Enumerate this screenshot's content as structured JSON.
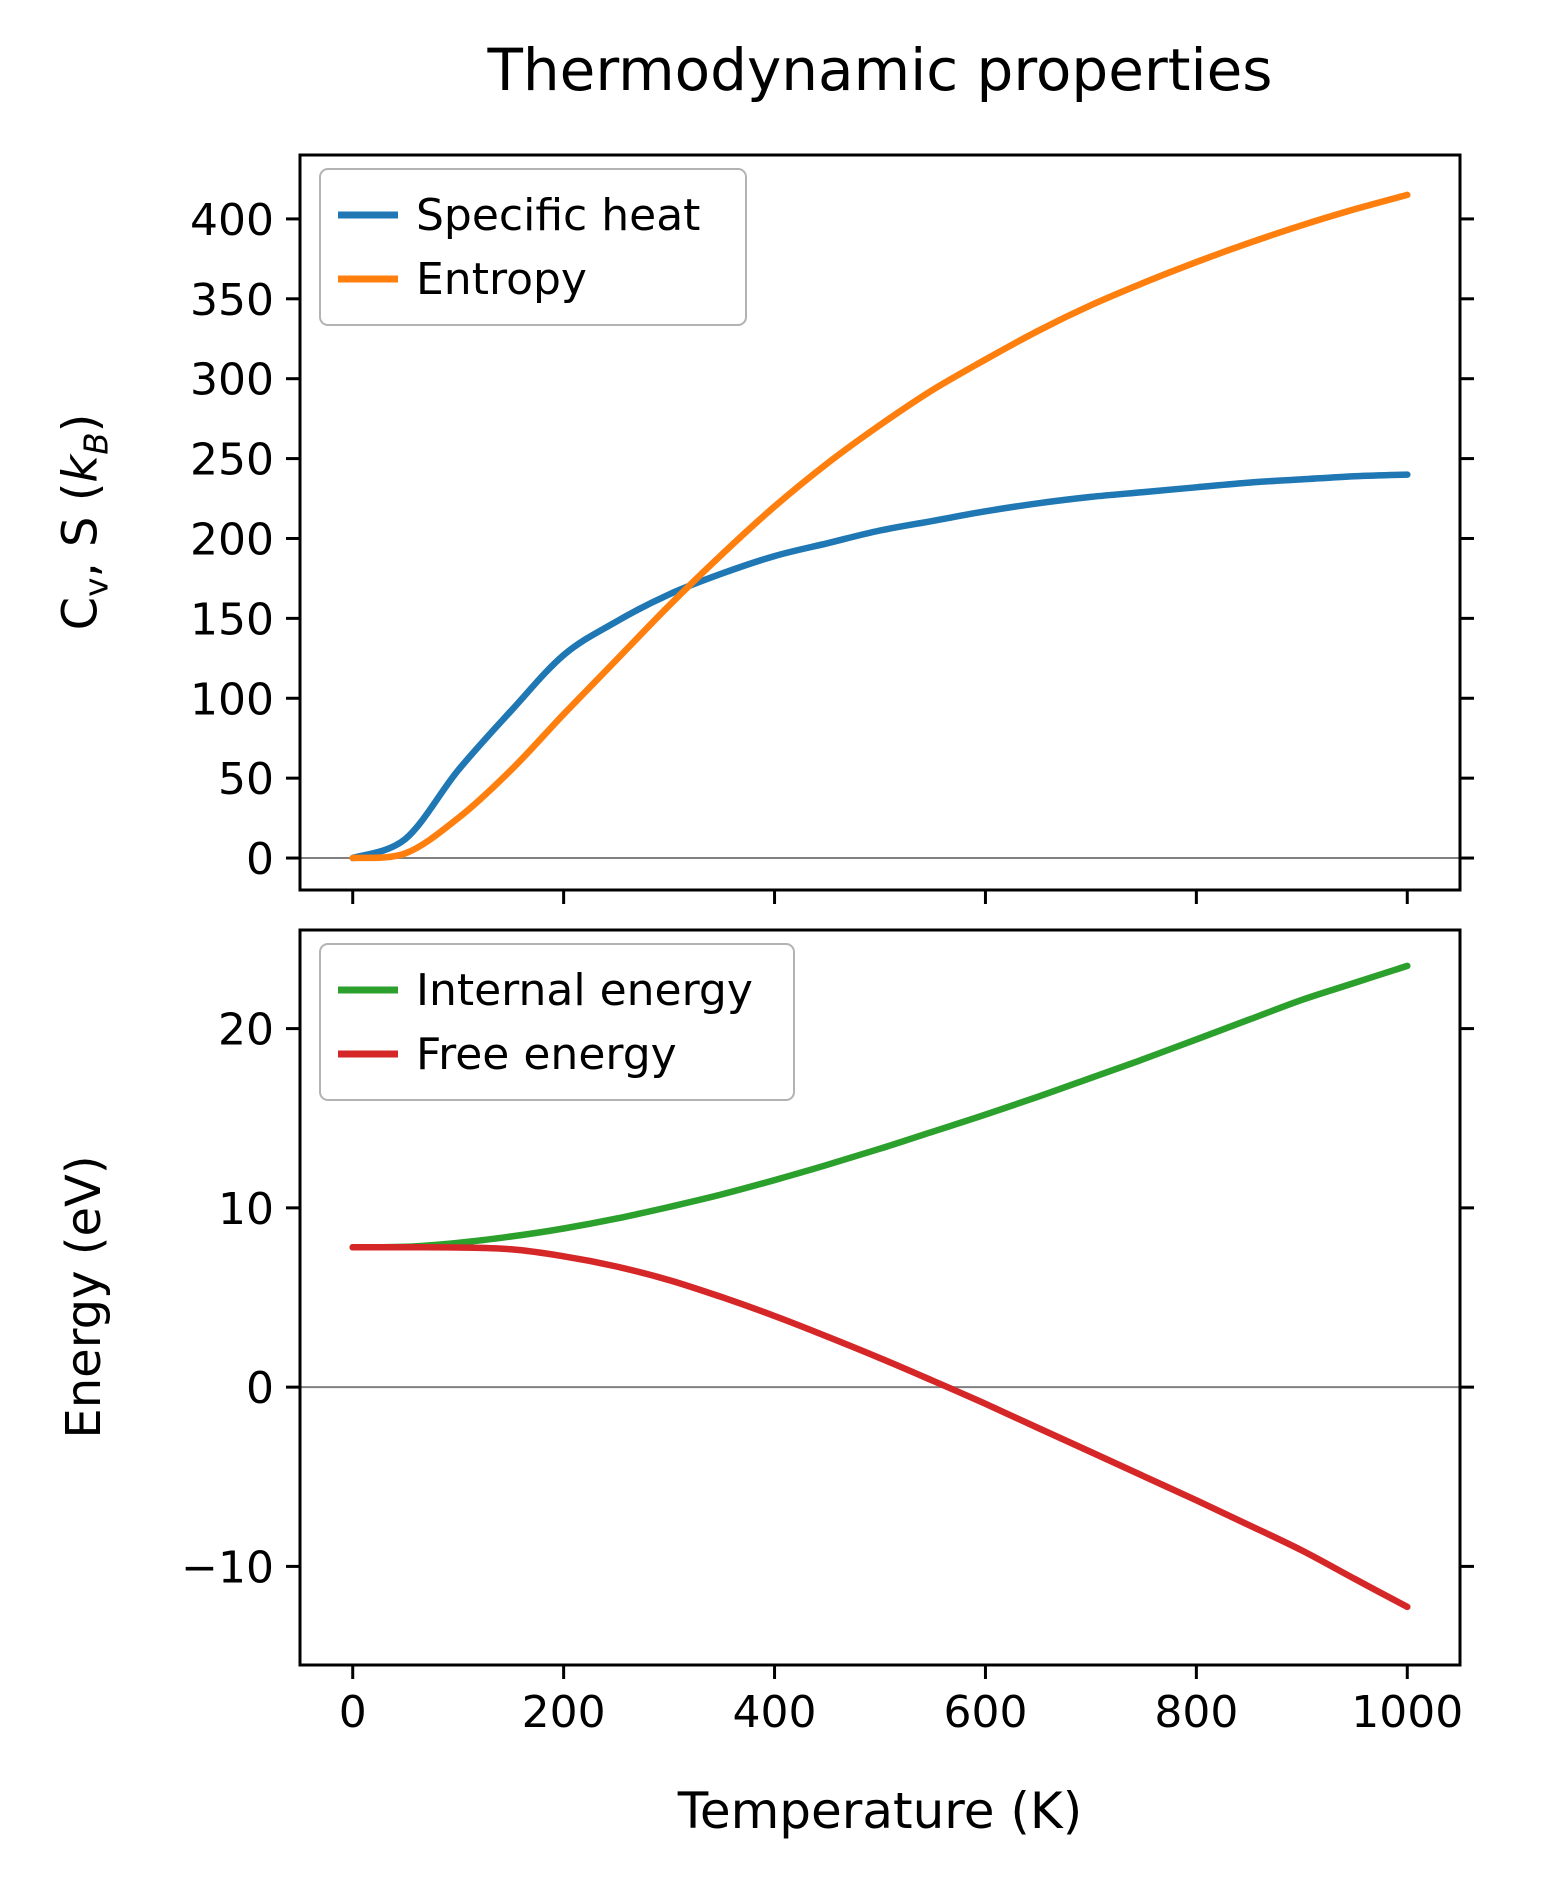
{
  "figure": {
    "title": "Thermodynamic properties",
    "xlabel": "Temperature (K)",
    "top_ylabel": {
      "p1": "C",
      "p2": "v",
      "p3": ", S (",
      "p4": "k",
      "p5": "B",
      "p6": ")"
    },
    "bottom_ylabel": "Energy (eV)"
  },
  "colors": {
    "background": "#ffffff",
    "spine": "#000000",
    "zero_line": "#808080",
    "legend_border": "#b3b3b3",
    "specific_heat": "#1f77b4",
    "entropy": "#ff7f0e",
    "internal_energy": "#2ca02c",
    "free_energy": "#d62728"
  },
  "chart_data": [
    {
      "type": "line",
      "title": "Thermodynamic properties",
      "xlabel": "Temperature (K)",
      "ylabel": "Cv, S (kB)",
      "xlim": [
        -50,
        1050
      ],
      "ylim": [
        -20,
        440
      ],
      "xticks": [
        0,
        200,
        400,
        600,
        800,
        1000
      ],
      "yticks": [
        0,
        50,
        100,
        150,
        200,
        250,
        300,
        350,
        400
      ],
      "show_xtick_labels": false,
      "zero_line": true,
      "grid": false,
      "legend_position": "upper left",
      "x": [
        0,
        50,
        100,
        150,
        200,
        250,
        300,
        350,
        400,
        450,
        500,
        550,
        600,
        650,
        700,
        750,
        800,
        850,
        900,
        950,
        1000
      ],
      "series": [
        {
          "name": "Specific heat",
          "color": "#1f77b4",
          "values": [
            0,
            12,
            55,
            92,
            127,
            148,
            165,
            178,
            189,
            197,
            205,
            211,
            217,
            222,
            226,
            229,
            232,
            235,
            237,
            239,
            240
          ]
        },
        {
          "name": "Entropy",
          "color": "#ff7f0e",
          "values": [
            0,
            3,
            25,
            55,
            90,
            124,
            158,
            190,
            220,
            247,
            271,
            293,
            312,
            330,
            346,
            360,
            373,
            385,
            396,
            406,
            415
          ]
        }
      ]
    },
    {
      "type": "line",
      "title": "",
      "xlabel": "Temperature (K)",
      "ylabel": "Energy (eV)",
      "xlim": [
        -50,
        1050
      ],
      "ylim": [
        -15.5,
        25.5
      ],
      "xticks": [
        0,
        200,
        400,
        600,
        800,
        1000
      ],
      "yticks": [
        -10,
        0,
        10,
        20
      ],
      "show_xtick_labels": true,
      "zero_line": true,
      "grid": false,
      "legend_position": "upper left",
      "x": [
        0,
        50,
        100,
        150,
        200,
        250,
        300,
        350,
        400,
        450,
        500,
        550,
        600,
        650,
        700,
        750,
        800,
        850,
        900,
        950,
        1000
      ],
      "series": [
        {
          "name": "Internal energy",
          "color": "#2ca02c",
          "values": [
            7.8,
            7.83,
            8.05,
            8.4,
            8.85,
            9.4,
            10.05,
            10.75,
            11.55,
            12.4,
            13.3,
            14.25,
            15.2,
            16.2,
            17.25,
            18.3,
            19.4,
            20.5,
            21.6,
            22.55,
            23.5
          ]
        },
        {
          "name": "Free energy",
          "color": "#d62728",
          "values": [
            7.8,
            7.8,
            7.79,
            7.69,
            7.3,
            6.73,
            5.97,
            5.02,
            3.97,
            2.82,
            1.62,
            0.36,
            -0.93,
            -2.28,
            -3.62,
            -4.97,
            -6.31,
            -7.7,
            -9.11,
            -10.69,
            -12.26
          ]
        }
      ]
    }
  ]
}
